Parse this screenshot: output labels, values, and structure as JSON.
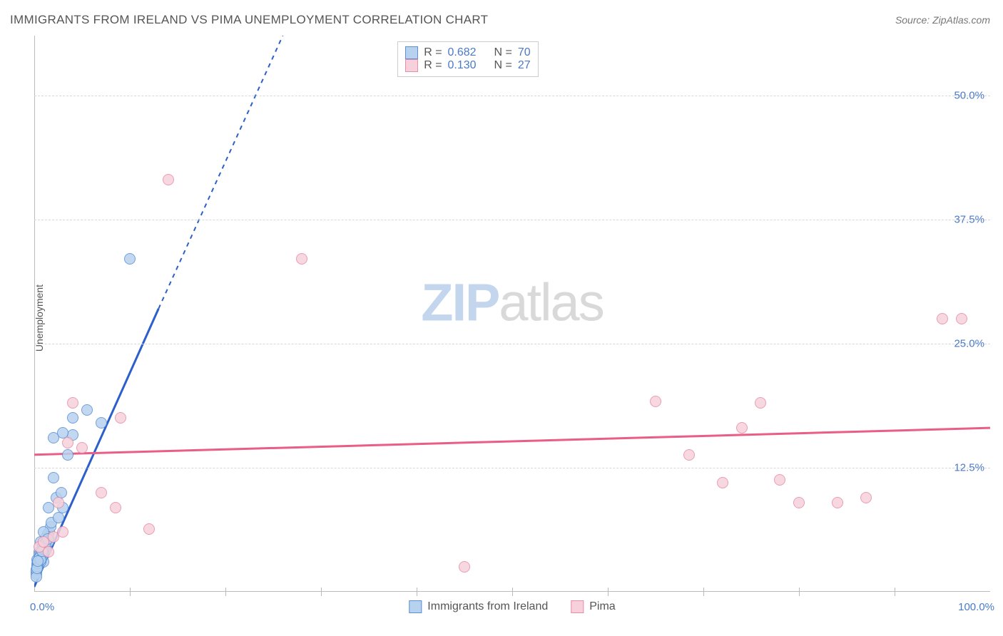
{
  "title": "IMMIGRANTS FROM IRELAND VS PIMA UNEMPLOYMENT CORRELATION CHART",
  "source": "Source: ZipAtlas.com",
  "yaxis_label": "Unemployment",
  "watermark_zip": "ZIP",
  "watermark_atlas": "atlas",
  "chart": {
    "type": "scatter",
    "xlim": [
      0,
      100
    ],
    "ylim": [
      0,
      56
    ],
    "x_ticks_labeled": [
      {
        "v": 0,
        "label": "0.0%"
      },
      {
        "v": 100,
        "label": "100.0%"
      }
    ],
    "x_minor_ticks": [
      10,
      20,
      30,
      40,
      50,
      60,
      70,
      80,
      90
    ],
    "y_gridlines": [
      {
        "v": 12.5,
        "label": "12.5%"
      },
      {
        "v": 25.0,
        "label": "25.0%"
      },
      {
        "v": 37.5,
        "label": "37.5%"
      },
      {
        "v": 50.0,
        "label": "50.0%"
      }
    ],
    "background_color": "#ffffff",
    "grid_color": "#d8d8d8",
    "axis_color": "#bbbbbb",
    "tick_font_color": "#4a7ac7",
    "tick_fontsize": 15,
    "title_fontsize": 17,
    "title_color": "#555555",
    "point_radius": 8,
    "point_border_width": 1.5,
    "series": [
      {
        "name": "Immigrants from Ireland",
        "fill": "#b7d2ee",
        "stroke": "#5b8fd6",
        "trend_color": "#2c5fc9",
        "trend_width": 3,
        "R": "0.682",
        "N": "70",
        "trend_solid": {
          "x1": 0,
          "y1": 0.5,
          "x2": 13,
          "y2": 28.5
        },
        "trend_dashed": {
          "x1": 13,
          "y1": 28.5,
          "x2": 26,
          "y2": 56
        },
        "points": [
          [
            0.3,
            3.2
          ],
          [
            0.5,
            4.0
          ],
          [
            1.0,
            3.0
          ],
          [
            0.7,
            5.0
          ],
          [
            1.2,
            4.2
          ],
          [
            0.4,
            2.5
          ],
          [
            0.8,
            3.5
          ],
          [
            1.5,
            5.0
          ],
          [
            0.2,
            2.0
          ],
          [
            0.9,
            4.5
          ],
          [
            0.6,
            3.8
          ],
          [
            1.1,
            4.8
          ],
          [
            0.3,
            2.8
          ],
          [
            0.5,
            3.3
          ],
          [
            1.0,
            4.0
          ],
          [
            0.7,
            3.0
          ],
          [
            1.3,
            5.5
          ],
          [
            0.4,
            3.0
          ],
          [
            0.8,
            4.0
          ],
          [
            1.6,
            6.0
          ],
          [
            0.2,
            1.8
          ],
          [
            0.9,
            4.2
          ],
          [
            0.6,
            3.5
          ],
          [
            1.2,
            5.0
          ],
          [
            0.3,
            2.3
          ],
          [
            0.5,
            3.7
          ],
          [
            1.0,
            4.5
          ],
          [
            0.7,
            3.7
          ],
          [
            1.4,
            5.8
          ],
          [
            0.4,
            2.7
          ],
          [
            0.8,
            3.8
          ],
          [
            1.7,
            6.5
          ],
          [
            0.2,
            2.2
          ],
          [
            0.9,
            4.7
          ],
          [
            0.6,
            3.2
          ],
          [
            1.1,
            4.5
          ],
          [
            0.3,
            2.6
          ],
          [
            0.5,
            3.1
          ],
          [
            1.0,
            4.3
          ],
          [
            0.7,
            3.4
          ],
          [
            1.3,
            5.2
          ],
          [
            0.4,
            2.9
          ],
          [
            0.8,
            4.2
          ],
          [
            1.5,
            5.5
          ],
          [
            0.2,
            1.5
          ],
          [
            0.9,
            4.0
          ],
          [
            0.6,
            3.6
          ],
          [
            1.2,
            4.9
          ],
          [
            0.3,
            2.4
          ],
          [
            0.5,
            3.4
          ],
          [
            1.0,
            6.0
          ],
          [
            0.7,
            3.2
          ],
          [
            1.4,
            5.3
          ],
          [
            0.4,
            3.1
          ],
          [
            0.8,
            4.1
          ],
          [
            1.8,
            7.0
          ],
          [
            2.5,
            7.5
          ],
          [
            3.0,
            8.5
          ],
          [
            2.0,
            11.5
          ],
          [
            3.5,
            13.8
          ],
          [
            2.0,
            15.5
          ],
          [
            4.0,
            15.8
          ],
          [
            3.0,
            16.0
          ],
          [
            4.0,
            17.5
          ],
          [
            5.5,
            18.3
          ],
          [
            7.0,
            17.0
          ],
          [
            10.0,
            33.5
          ],
          [
            1.5,
            8.5
          ],
          [
            2.3,
            9.5
          ],
          [
            2.8,
            10.0
          ]
        ]
      },
      {
        "name": "Pima",
        "fill": "#f6d1db",
        "stroke": "#e88da5",
        "trend_color": "#ea5d86",
        "trend_width": 3,
        "R": "0.130",
        "N": "27",
        "trend_solid": {
          "x1": 0,
          "y1": 13.8,
          "x2": 100,
          "y2": 16.5
        },
        "points": [
          [
            0.5,
            4.5
          ],
          [
            1.0,
            5.0
          ],
          [
            1.5,
            4.0
          ],
          [
            2.0,
            5.5
          ],
          [
            2.5,
            9.0
          ],
          [
            3.0,
            6.0
          ],
          [
            3.5,
            15.0
          ],
          [
            4.0,
            19.0
          ],
          [
            5.0,
            14.5
          ],
          [
            7.0,
            10.0
          ],
          [
            8.5,
            8.5
          ],
          [
            9.0,
            17.5
          ],
          [
            12.0,
            6.3
          ],
          [
            14.0,
            41.5
          ],
          [
            28.0,
            33.5
          ],
          [
            45.0,
            2.5
          ],
          [
            65.0,
            19.2
          ],
          [
            68.5,
            13.8
          ],
          [
            72.0,
            11.0
          ],
          [
            74.0,
            16.5
          ],
          [
            76.0,
            19.0
          ],
          [
            78.0,
            11.3
          ],
          [
            80.0,
            9.0
          ],
          [
            84.0,
            9.0
          ],
          [
            87.0,
            9.5
          ],
          [
            95.0,
            27.5
          ],
          [
            97.0,
            27.5
          ]
        ]
      }
    ]
  },
  "legend_top": {
    "r_label": "R =",
    "n_label": "N ="
  }
}
